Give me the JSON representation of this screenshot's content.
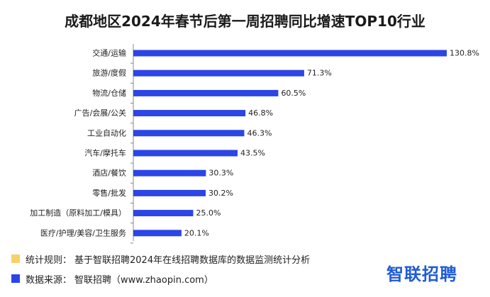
{
  "title": "成都地区2024年春节后第一周招聘同比增速TOP10行业",
  "chart_data": {
    "type": "bar",
    "orientation": "horizontal",
    "categories": [
      "交通/运输",
      "旅游/度假",
      "物流/仓储",
      "广告/会展/公关",
      "工业自动化",
      "汽车/摩托车",
      "酒店/餐饮",
      "零售/批发",
      "加工制造（原料加工/模具）",
      "医疗/护理/美容/卫生服务"
    ],
    "values": [
      130.8,
      71.3,
      60.5,
      46.8,
      46.3,
      43.5,
      30.3,
      30.2,
      25.0,
      20.1
    ],
    "value_labels": [
      "130.8%",
      "71.3%",
      "60.5%",
      "46.8%",
      "46.3%",
      "43.5%",
      "30.3%",
      "30.2%",
      "25.0%",
      "20.1%"
    ],
    "bar_color": "#2b45e6",
    "xlim": [
      0,
      130.8
    ],
    "grid": false
  },
  "footer": {
    "rule": {
      "color": "#f5d16a",
      "label": "统计规则：",
      "text": "基于智联招聘2024年在线招聘数据库的数据监测统计分析"
    },
    "source": {
      "color": "#2b45e6",
      "label": "数据来源：",
      "text": "智联招聘（www.zhaopin.com）"
    }
  },
  "brand": "智联招聘"
}
